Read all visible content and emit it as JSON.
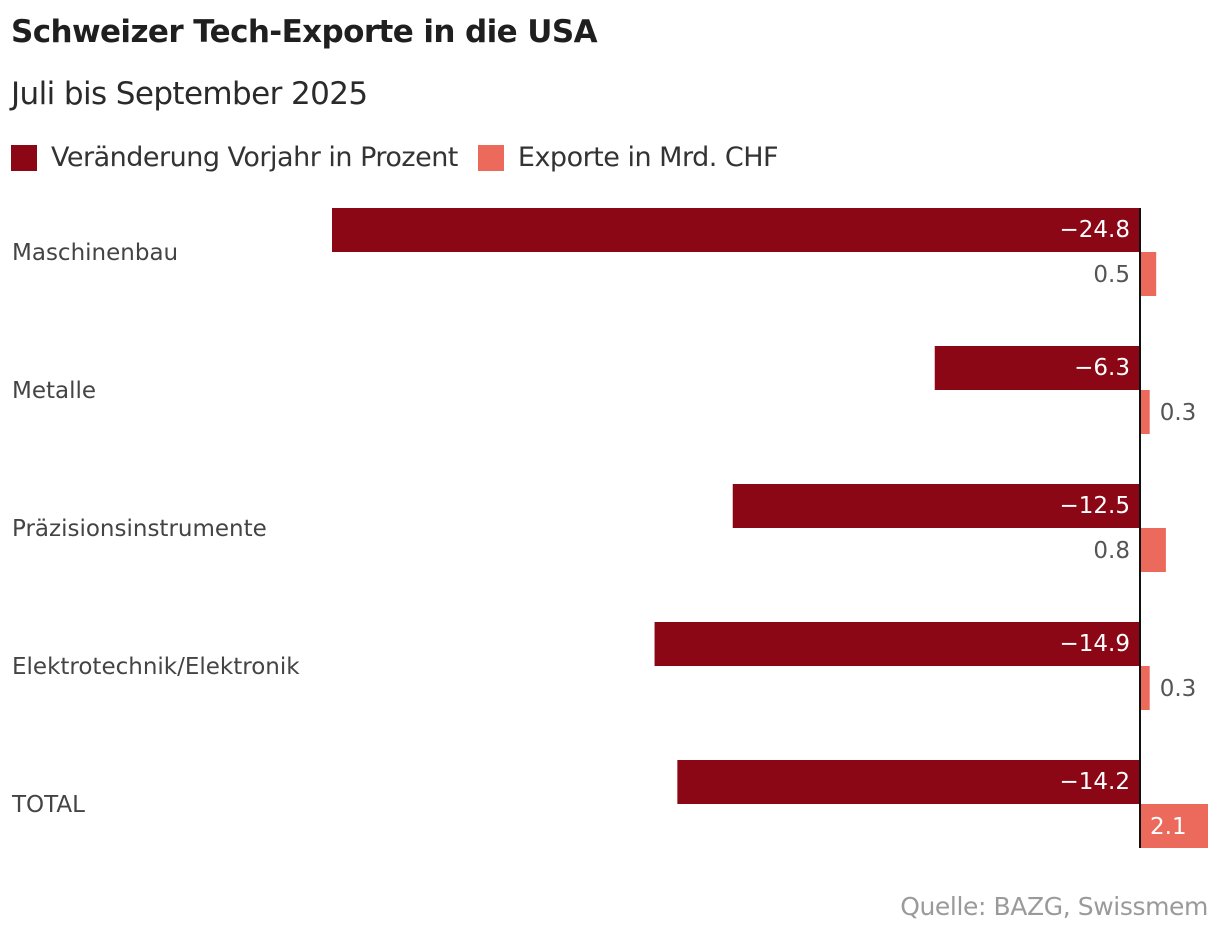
{
  "chart_data": {
    "type": "bar",
    "orientation": "horizontal",
    "title": "Schweizer Tech-Exporte in die USA",
    "subtitle": "Juli bis September 2025",
    "categories": [
      "Maschinenbau",
      "Metalle",
      "Präzisionsinstrumente",
      "Elektrotechnik/Elektronik",
      "TOTAL"
    ],
    "series": [
      {
        "name": "Veränderung Vorjahr in Prozent",
        "color": "#8b0716",
        "values": [
          -24.8,
          -6.3,
          -12.5,
          -14.9,
          -14.2
        ],
        "labels": [
          "−24.8",
          "−6.3",
          "−12.5",
          "−14.9",
          "−14.2"
        ]
      },
      {
        "name": "Exporte in Mrd. CHF",
        "color": "#ec6a5c",
        "values": [
          0.5,
          0.3,
          0.8,
          0.3,
          2.1
        ],
        "labels": [
          "0.5",
          "0.3",
          "0.8",
          "0.3",
          "2.1"
        ]
      }
    ],
    "source": "Quelle: BAZG, Swissmem"
  }
}
